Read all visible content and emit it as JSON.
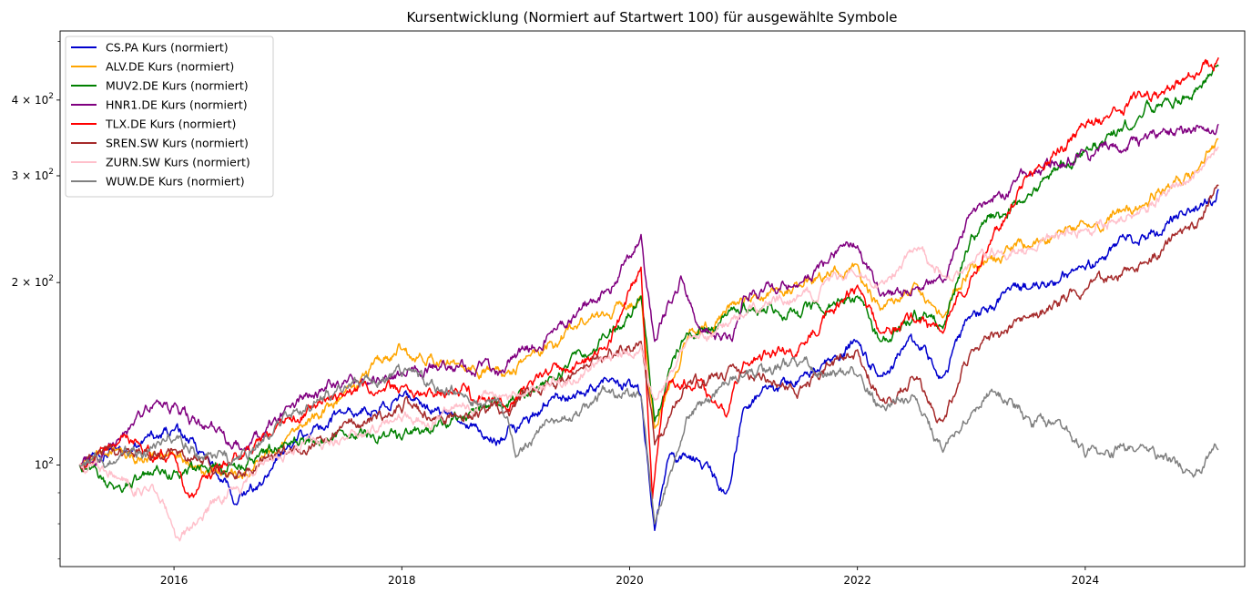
{
  "chart_data": {
    "type": "line",
    "title": "Kursentwicklung (Normiert auf Startwert 100) für ausgewählte Symbole",
    "xlabel": "",
    "ylabel": "",
    "y_scale": "log",
    "xlim": [
      2015.0,
      2025.4
    ],
    "ylim": [
      68,
      520
    ],
    "x_ticks": [
      {
        "value": 2016,
        "label": "2016"
      },
      {
        "value": 2018,
        "label": "2018"
      },
      {
        "value": 2020,
        "label": "2020"
      },
      {
        "value": 2022,
        "label": "2022"
      },
      {
        "value": 2024,
        "label": "2024"
      }
    ],
    "y_ticks": [
      {
        "value": 100,
        "base": "10",
        "exp": "2",
        "mult": ""
      },
      {
        "value": 200,
        "base": "10",
        "exp": "2",
        "mult": "2 × "
      },
      {
        "value": 300,
        "base": "10",
        "exp": "2",
        "mult": "3 × "
      },
      {
        "value": 400,
        "base": "10",
        "exp": "2",
        "mult": "4 × "
      }
    ],
    "y_minor_ticks": [
      70,
      80,
      90,
      500
    ],
    "grid": false,
    "legend_position": "top-left",
    "series": [
      {
        "name": "CS.PA Kurs (normiert)",
        "color": "#0000cd",
        "x": [
          2015.17,
          2015.5,
          2016.0,
          2016.3,
          2016.55,
          2016.8,
          2017.0,
          2017.5,
          2018.0,
          2018.5,
          2018.9,
          2019.3,
          2019.8,
          2020.1,
          2020.22,
          2020.35,
          2020.6,
          2020.85,
          2021.0,
          2021.5,
          2022.0,
          2022.2,
          2022.5,
          2022.75,
          2023.0,
          2023.5,
          2024.0,
          2024.5,
          2025.0,
          2025.17
        ],
        "y": [
          100,
          106,
          114,
          103,
          86,
          96,
          108,
          122,
          130,
          118,
          110,
          128,
          138,
          130,
          78,
          104,
          102,
          90,
          124,
          140,
          160,
          140,
          160,
          140,
          176,
          195,
          210,
          240,
          265,
          285
        ]
      },
      {
        "name": "ALV.DE Kurs (normiert)",
        "color": "#ffa500",
        "x": [
          2015.17,
          2015.5,
          2016.0,
          2016.3,
          2016.6,
          2017.0,
          2017.5,
          2018.0,
          2018.5,
          2018.9,
          2019.3,
          2019.8,
          2020.1,
          2020.22,
          2020.5,
          2021.0,
          2021.5,
          2022.0,
          2022.2,
          2022.5,
          2022.75,
          2023.0,
          2023.5,
          2024.0,
          2024.5,
          2025.0,
          2025.17
        ],
        "y": [
          100,
          106,
          104,
          97,
          95,
          112,
          132,
          155,
          147,
          140,
          160,
          178,
          190,
          115,
          160,
          185,
          198,
          214,
          180,
          200,
          175,
          215,
          230,
          250,
          268,
          310,
          345
        ]
      },
      {
        "name": "MUV2.DE Kurs (normiert)",
        "color": "#008000",
        "x": [
          2015.17,
          2015.5,
          2016.0,
          2016.5,
          2017.0,
          2017.5,
          2018.0,
          2018.5,
          2018.9,
          2019.3,
          2019.8,
          2020.1,
          2020.22,
          2020.5,
          2021.0,
          2021.5,
          2022.0,
          2022.2,
          2022.5,
          2022.75,
          2023.0,
          2023.5,
          2024.0,
          2024.5,
          2025.0,
          2025.17
        ],
        "y": [
          100,
          92,
          98,
          100,
          108,
          112,
          110,
          120,
          125,
          140,
          162,
          190,
          118,
          165,
          185,
          175,
          190,
          160,
          180,
          168,
          240,
          280,
          330,
          375,
          420,
          455
        ]
      },
      {
        "name": "HNR1.DE Kurs (normiert)",
        "color": "#800080",
        "x": [
          2015.17,
          2015.5,
          2015.85,
          2016.3,
          2016.6,
          2017.0,
          2017.5,
          2018.0,
          2018.5,
          2018.9,
          2019.3,
          2019.8,
          2020.1,
          2020.22,
          2020.45,
          2020.6,
          2020.9,
          2021.0,
          2021.5,
          2022.0,
          2022.2,
          2022.5,
          2022.75,
          2023.0,
          2023.5,
          2024.0,
          2024.5,
          2025.0,
          2025.17
        ],
        "y": [
          100,
          110,
          128,
          115,
          106,
          125,
          138,
          142,
          145,
          142,
          165,
          195,
          240,
          160,
          205,
          170,
          160,
          190,
          200,
          230,
          190,
          195,
          200,
          260,
          300,
          330,
          345,
          360,
          365
        ]
      },
      {
        "name": "TLX.DE Kurs (normiert)",
        "color": "#ff0000",
        "x": [
          2015.17,
          2015.5,
          2016.0,
          2016.1,
          2016.5,
          2017.0,
          2017.5,
          2018.0,
          2018.5,
          2018.9,
          2019.3,
          2019.8,
          2020.1,
          2020.2,
          2020.3,
          2020.6,
          2020.85,
          2021.0,
          2021.5,
          2022.0,
          2022.2,
          2022.5,
          2022.75,
          2023.0,
          2023.5,
          2024.0,
          2024.5,
          2025.0,
          2025.17
        ],
        "y": [
          100,
          108,
          104,
          90,
          100,
          120,
          130,
          135,
          130,
          125,
          142,
          155,
          212,
          88,
          130,
          138,
          120,
          148,
          158,
          198,
          165,
          172,
          165,
          205,
          300,
          360,
          405,
          440,
          470
        ]
      },
      {
        "name": "SREN.SW Kurs (normiert)",
        "color": "#a52a2a",
        "x": [
          2015.17,
          2015.5,
          2016.0,
          2016.5,
          2017.0,
          2017.5,
          2018.0,
          2018.5,
          2018.9,
          2019.3,
          2019.8,
          2020.1,
          2020.22,
          2020.5,
          2021.0,
          2021.5,
          2022.0,
          2022.2,
          2022.5,
          2022.75,
          2023.0,
          2023.5,
          2024.0,
          2024.5,
          2025.0,
          2025.17
        ],
        "y": [
          100,
          104,
          106,
          97,
          105,
          118,
          122,
          120,
          122,
          135,
          150,
          160,
          108,
          135,
          142,
          135,
          155,
          128,
          138,
          118,
          155,
          175,
          195,
          215,
          255,
          290
        ]
      },
      {
        "name": "ZURN.SW Kurs (normiert)",
        "color": "#ffc0cb",
        "x": [
          2015.17,
          2015.5,
          2015.85,
          2016.05,
          2016.2,
          2016.5,
          2017.0,
          2017.5,
          2018.0,
          2018.5,
          2018.9,
          2019.3,
          2019.8,
          2020.1,
          2020.22,
          2020.5,
          2021.0,
          2021.5,
          2022.0,
          2022.2,
          2022.5,
          2022.75,
          2023.0,
          2023.5,
          2024.0,
          2024.5,
          2025.0,
          2025.17
        ],
        "y": [
          100,
          95,
          90,
          75,
          80,
          92,
          105,
          110,
          118,
          125,
          130,
          135,
          150,
          158,
          128,
          160,
          175,
          190,
          205,
          200,
          228,
          205,
          215,
          228,
          245,
          265,
          305,
          335
        ]
      },
      {
        "name": "WUW.DE Kurs (normiert)",
        "color": "#808080",
        "x": [
          2015.17,
          2015.5,
          2016.0,
          2016.5,
          2017.0,
          2017.5,
          2018.0,
          2018.5,
          2018.9,
          2019.0,
          2019.3,
          2019.8,
          2020.1,
          2020.22,
          2020.5,
          2021.0,
          2021.5,
          2022.0,
          2022.2,
          2022.5,
          2022.75,
          2023.0,
          2023.2,
          2023.5,
          2023.8,
          2024.0,
          2024.5,
          2024.9,
          2025.17
        ],
        "y": [
          100,
          102,
          110,
          100,
          120,
          135,
          140,
          132,
          120,
          103,
          118,
          132,
          130,
          80,
          120,
          140,
          148,
          140,
          125,
          130,
          105,
          122,
          132,
          120,
          115,
          103,
          108,
          98,
          106
        ]
      }
    ]
  }
}
